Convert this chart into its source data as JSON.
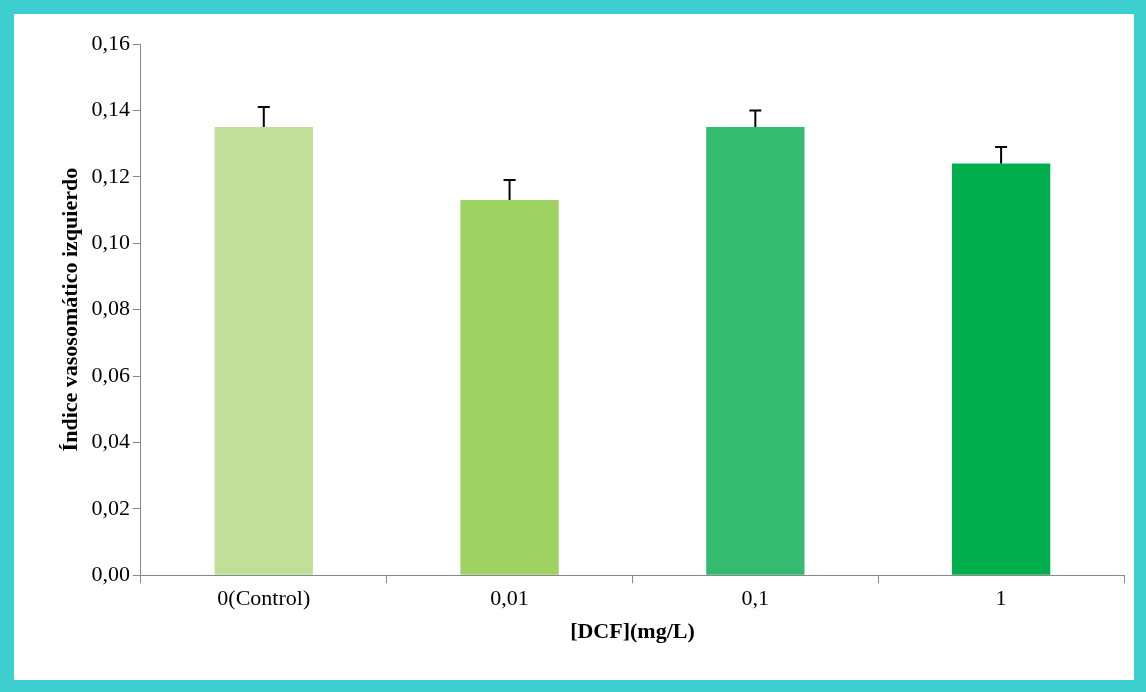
{
  "chart_data": {
    "type": "bar",
    "xlabel": "[DCF](mg/L)",
    "ylabel": "Índice vasosomático izquierdo",
    "categories": [
      "0(Control)",
      "0,01",
      "0,1",
      "1"
    ],
    "values": [
      0.135,
      0.113,
      0.135,
      0.124
    ],
    "colors": [
      "#c0e09a",
      "#9ed262",
      "#35bb6f",
      "#00ae4e"
    ],
    "errors": [
      [
        0.135,
        0.141
      ],
      [
        0.113,
        0.119
      ],
      [
        0.135,
        0.14
      ],
      [
        0.124,
        0.129
      ]
    ],
    "ylim": [
      0,
      0.16
    ],
    "yticks": [
      {
        "value": 0,
        "label": "0,00"
      },
      {
        "value": 0.02,
        "label": "0,02"
      },
      {
        "value": 0.04,
        "label": "0,04"
      },
      {
        "value": 0.06,
        "label": "0,06"
      },
      {
        "value": 0.08,
        "label": "0,08"
      },
      {
        "value": 0.1,
        "label": "0,10"
      },
      {
        "value": 0.12,
        "label": "0,12"
      },
      {
        "value": 0.14,
        "label": "0,14"
      },
      {
        "value": 0.16,
        "label": "0,16"
      }
    ],
    "grid": false,
    "legend": false
  }
}
